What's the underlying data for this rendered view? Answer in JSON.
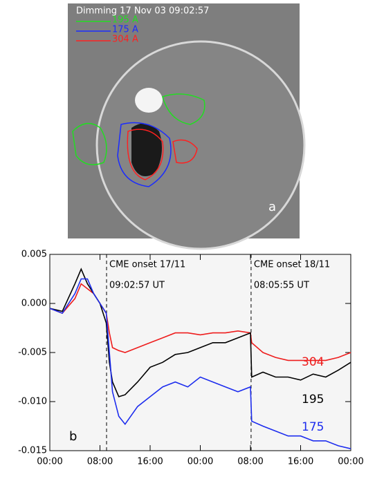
{
  "image_panel": {
    "title": "Dimming 17 Nov 03   09:02:57",
    "legend": [
      {
        "name": "195 A",
        "color": "#22dd22"
      },
      {
        "name": "175 A",
        "color": "#1a2bff"
      },
      {
        "name": "304 A",
        "color": "#ff2020"
      }
    ],
    "panel_label": "a"
  },
  "chart_data": {
    "type": "line",
    "panel_label": "b",
    "x": [
      0,
      2,
      4,
      5,
      6,
      7,
      8,
      9,
      9.5,
      10,
      11,
      12,
      14,
      16,
      18,
      20,
      22,
      24,
      26,
      28,
      30,
      32,
      32.2,
      34,
      36,
      38,
      40,
      42,
      44,
      46,
      48
    ],
    "series": [
      {
        "name": "304",
        "color": "#ee1c1c",
        "values": [
          -0.0005,
          -0.001,
          0.0005,
          0.002,
          0.0015,
          0.001,
          0,
          -0.001,
          -0.003,
          -0.0045,
          -0.0048,
          -0.005,
          -0.0045,
          -0.004,
          -0.0035,
          -0.003,
          -0.003,
          -0.0032,
          -0.003,
          -0.003,
          -0.0028,
          -0.003,
          -0.004,
          -0.005,
          -0.0055,
          -0.0058,
          -0.0058,
          -0.0058,
          -0.0058,
          -0.0055,
          -0.005
        ]
      },
      {
        "name": "195",
        "color": "#000000",
        "values": [
          -0.0005,
          -0.0008,
          0.002,
          0.0035,
          0.002,
          0.001,
          0,
          -0.002,
          -0.006,
          -0.008,
          -0.0095,
          -0.0093,
          -0.008,
          -0.0065,
          -0.006,
          -0.0052,
          -0.005,
          -0.0045,
          -0.004,
          -0.004,
          -0.0035,
          -0.003,
          -0.0075,
          -0.007,
          -0.0075,
          -0.0075,
          -0.0078,
          -0.0072,
          -0.0075,
          -0.0068,
          -0.006
        ]
      },
      {
        "name": "175",
        "color": "#1c2cee",
        "values": [
          -0.0005,
          -0.001,
          0.001,
          0.0025,
          0.0025,
          0.001,
          0,
          -0.001,
          -0.005,
          -0.009,
          -0.0115,
          -0.0123,
          -0.0105,
          -0.0095,
          -0.0085,
          -0.008,
          -0.0085,
          -0.0075,
          -0.008,
          -0.0085,
          -0.009,
          -0.0085,
          -0.012,
          -0.0125,
          -0.013,
          -0.0135,
          -0.0135,
          -0.014,
          -0.014,
          -0.0145,
          -0.0148
        ]
      }
    ],
    "xlim": [
      0,
      48
    ],
    "xticks": [
      {
        "value": 0,
        "label": "00:00"
      },
      {
        "value": 8,
        "label": "08:00"
      },
      {
        "value": 16,
        "label": "16:00"
      },
      {
        "value": 24,
        "label": "00:00"
      },
      {
        "value": 32,
        "label": "08:00"
      },
      {
        "value": 40,
        "label": "16:00"
      },
      {
        "value": 48,
        "label": "00:00"
      }
    ],
    "ylim": [
      -0.015,
      0.005
    ],
    "yticks": [
      -0.015,
      {
        "value": -0.01,
        "label": "-0.010"
      },
      -0.005,
      {
        "value": 0,
        "label": "0.000"
      },
      0.005
    ],
    "annotations": [
      {
        "x": 9.05,
        "text": [
          "CME onset 17/11",
          "09:02:57 UT"
        ]
      },
      {
        "x": 32.1,
        "text": [
          "CME onset 18/11",
          "08:05:55 UT"
        ]
      }
    ]
  }
}
